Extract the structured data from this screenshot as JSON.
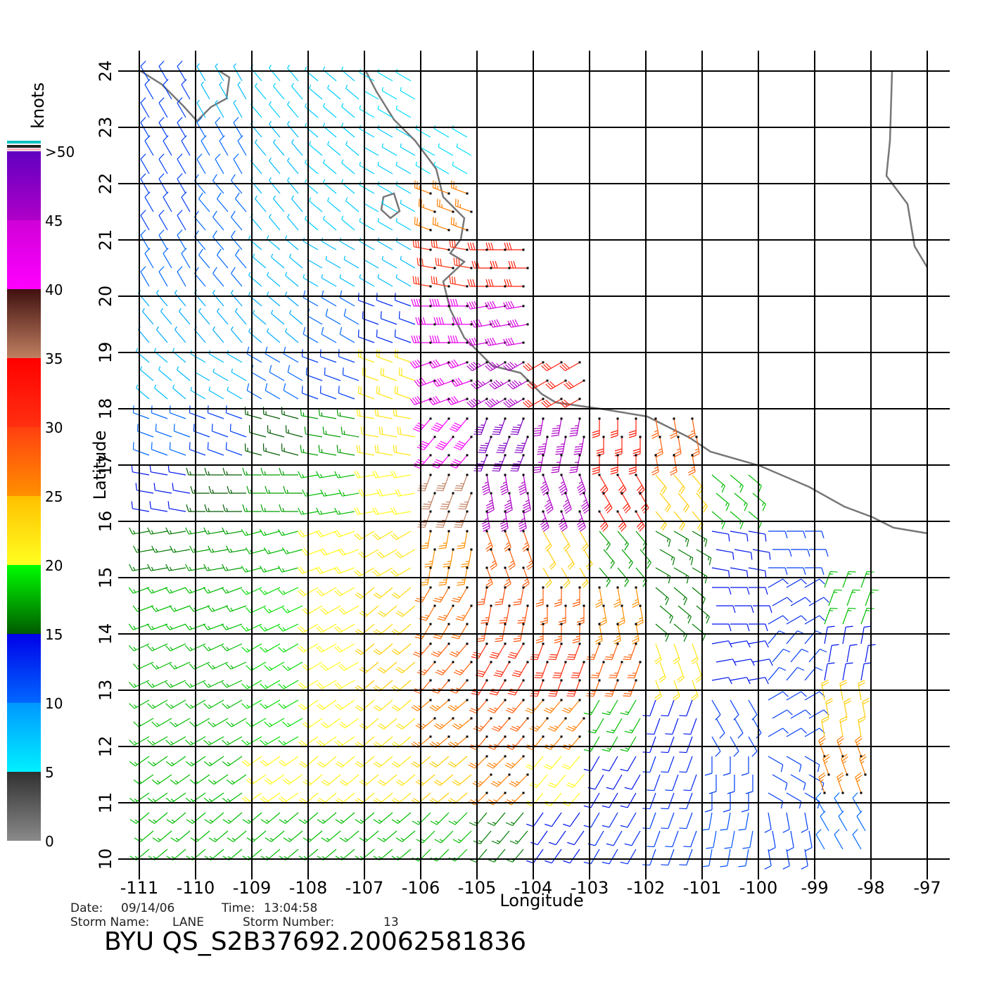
{
  "map": {
    "xlabel": "Longitude",
    "ylabel": "Latitude",
    "xlim": [
      -111,
      -97
    ],
    "ylim": [
      10,
      24
    ],
    "xticks": [
      -111,
      -110,
      -109,
      -108,
      -107,
      -106,
      -105,
      -104,
      -103,
      -102,
      -101,
      -100,
      -99,
      -98,
      -97
    ],
    "yticks": [
      10,
      11,
      12,
      13,
      14,
      15,
      16,
      17,
      18,
      19,
      20,
      21,
      22,
      23,
      24
    ],
    "grid": true,
    "wind_lon": [
      -110.5,
      -109.5,
      -108.5,
      -107.5,
      -106.5,
      -105.5,
      -104.5,
      -103.5,
      -102.5,
      -101.5,
      -100.5,
      -99.5,
      -98.5,
      -97.5
    ],
    "wind_lat": [
      23.5,
      22.5,
      21.5,
      20.5,
      19.5,
      18.5,
      17.5,
      16.5,
      15.5,
      14.5,
      13.5,
      12.5,
      11.5,
      10.5
    ],
    "wind_speed": [
      [
        12,
        8,
        7,
        7,
        6,
        null,
        null,
        null,
        null,
        null,
        null,
        null,
        null,
        null
      ],
      [
        12,
        10,
        8,
        7,
        7,
        6,
        null,
        null,
        null,
        null,
        null,
        null,
        null,
        null
      ],
      [
        12,
        10,
        8,
        7,
        7,
        26,
        null,
        null,
        null,
        null,
        null,
        null,
        null,
        null
      ],
      [
        10,
        10,
        8,
        8,
        8,
        30,
        32,
        null,
        null,
        null,
        null,
        null,
        null,
        null
      ],
      [
        9,
        9,
        9,
        10,
        13,
        42,
        44,
        null,
        null,
        null,
        null,
        null,
        null,
        null
      ],
      [
        8,
        8,
        10,
        12,
        22,
        42,
        45,
        32,
        null,
        null,
        null,
        null,
        null,
        null
      ],
      [
        10,
        12,
        15,
        17,
        22,
        40,
        48,
        45,
        32,
        28,
        null,
        null,
        null,
        null
      ],
      [
        14,
        15,
        17,
        18,
        20,
        35,
        45,
        45,
        32,
        24,
        18,
        null,
        null,
        null
      ],
      [
        16,
        17,
        18,
        20,
        22,
        25,
        28,
        24,
        17,
        16,
        14,
        12,
        null,
        null
      ],
      [
        18,
        18,
        19,
        21,
        23,
        27,
        29,
        28,
        25,
        16,
        14,
        13,
        18,
        null
      ],
      [
        18,
        18,
        19,
        20,
        24,
        28,
        30,
        30,
        28,
        22,
        14,
        12,
        14,
        null
      ],
      [
        18,
        18,
        19,
        20,
        22,
        26,
        28,
        26,
        18,
        14,
        12,
        12,
        24,
        null
      ],
      [
        18,
        18,
        20,
        21,
        22,
        24,
        26,
        20,
        14,
        13,
        12,
        12,
        26,
        null
      ],
      [
        18,
        18,
        18,
        18,
        18,
        18,
        16,
        14,
        13,
        12,
        11,
        12,
        10,
        null
      ]
    ],
    "wind_direction": [
      [
        330,
        330,
        320,
        310,
        300,
        null,
        null,
        null,
        null,
        null,
        null,
        null,
        null,
        null
      ],
      [
        330,
        330,
        320,
        310,
        300,
        300,
        null,
        null,
        null,
        null,
        null,
        null,
        null,
        null
      ],
      [
        330,
        320,
        320,
        310,
        300,
        290,
        null,
        null,
        null,
        null,
        null,
        null,
        null,
        null
      ],
      [
        330,
        320,
        310,
        300,
        300,
        280,
        270,
        null,
        null,
        null,
        null,
        null,
        null,
        null
      ],
      [
        320,
        320,
        310,
        300,
        290,
        270,
        260,
        null,
        null,
        null,
        null,
        null,
        null,
        null
      ],
      [
        310,
        300,
        300,
        290,
        290,
        250,
        240,
        240,
        null,
        null,
        null,
        null,
        null,
        null
      ],
      [
        290,
        290,
        285,
        280,
        280,
        220,
        200,
        190,
        180,
        170,
        null,
        null,
        null,
        null
      ],
      [
        280,
        270,
        270,
        260,
        260,
        200,
        170,
        160,
        150,
        140,
        130,
        null,
        null,
        null
      ],
      [
        260,
        260,
        255,
        250,
        240,
        190,
        160,
        150,
        140,
        120,
        100,
        90,
        null,
        null
      ],
      [
        250,
        250,
        245,
        240,
        230,
        210,
        190,
        180,
        170,
        130,
        90,
        60,
        20,
        null
      ],
      [
        245,
        245,
        240,
        240,
        230,
        220,
        210,
        200,
        200,
        160,
        80,
        40,
        10,
        null
      ],
      [
        240,
        240,
        240,
        235,
        230,
        230,
        220,
        220,
        210,
        200,
        150,
        60,
        350,
        null
      ],
      [
        235,
        235,
        235,
        230,
        230,
        230,
        225,
        220,
        210,
        200,
        180,
        120,
        340,
        null
      ],
      [
        230,
        230,
        230,
        230,
        230,
        225,
        220,
        215,
        210,
        200,
        190,
        170,
        330,
        null
      ]
    ]
  },
  "colorbar": {
    "title": "knots",
    "lim": [
      0,
      50
    ],
    "ticks": [
      0,
      5,
      10,
      15,
      20,
      25,
      30,
      35,
      40,
      45,
      {
        "value": 50,
        "label": ">50"
      }
    ],
    "colors": [
      [
        "#8a8a8a",
        "#303030"
      ],
      [
        "#00f0ff",
        "#0098ff"
      ],
      [
        "#0068ff",
        "#0000e8"
      ],
      [
        "#005a00",
        "#00ff00"
      ],
      [
        "#ffff20",
        "#ffc000"
      ],
      [
        "#ff9000",
        "#ff4010"
      ],
      [
        "#ff3010",
        "#ff0000"
      ],
      [
        "#c08060",
        "#401010"
      ],
      [
        "#ff00ff",
        "#d000d8"
      ],
      [
        "#b000c8",
        "#6000c0"
      ]
    ]
  },
  "footer": {
    "date_label": "Date:",
    "date": "09/14/06",
    "time_label": "Time:",
    "time": "13:04:58",
    "storm_name_label": "Storm Name:",
    "storm_name": "LANE",
    "storm_number_label": "Storm Number:",
    "storm_number": "13",
    "product": "BYU QS_S2B37692.20062581836"
  }
}
